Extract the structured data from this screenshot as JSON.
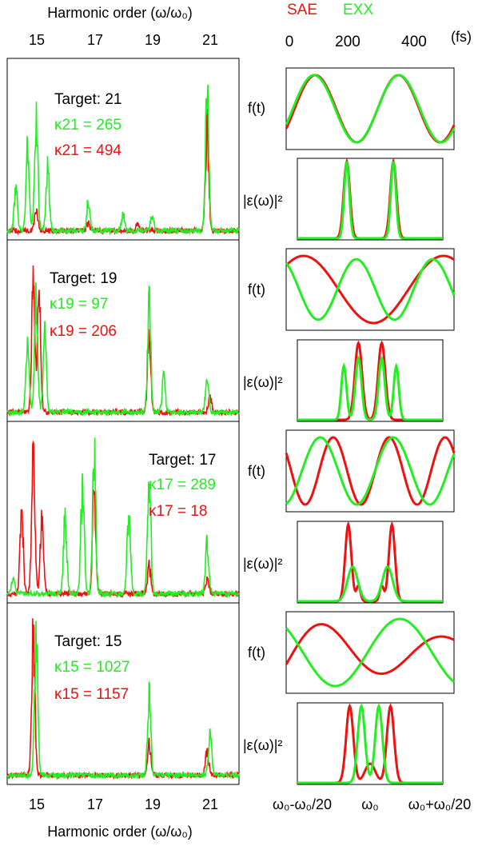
{
  "colors": {
    "sae": "#ee1111",
    "exx": "#22ee22",
    "axis": "#000000"
  },
  "header": {
    "left_title": "Harmonic order (ω/ω₀)",
    "legend_sae": "SAE",
    "legend_exx": "EXX",
    "time_unit": "(fs)",
    "time_ticks": [
      "0",
      "200",
      "400"
    ]
  },
  "footer": {
    "left_title": "Harmonic order (ω/ω₀)",
    "freq_ticks": [
      "ω₀-ω₀/20",
      "ω₀",
      "ω₀+ω₀/20"
    ]
  },
  "harmonic_ticks": [
    "15",
    "17",
    "19",
    "21"
  ],
  "labels": {
    "ft": "f(t)",
    "spectrum": "|ε(ω)|²"
  },
  "chart_data": [
    {
      "type": "line",
      "panel": "spectrum",
      "target_label": "Target: 21",
      "xlabel": "Harmonic order (ω/ω₀)",
      "xlim": [
        14,
        22
      ],
      "x_ticks": [
        15,
        17,
        19,
        21
      ],
      "exx_kappa": "κ21 = 265",
      "sae_kappa": "κ21 = 494",
      "series": [
        {
          "name": "SAE",
          "peaks": [
            [
              15.0,
              0.16
            ],
            [
              16.8,
              0.05
            ],
            [
              18.5,
              0.05
            ],
            [
              20.9,
              0.72
            ]
          ]
        },
        {
          "name": "EXX",
          "peaks": [
            [
              14.3,
              0.3
            ],
            [
              14.7,
              0.55
            ],
            [
              15.0,
              0.86
            ],
            [
              15.4,
              0.45
            ],
            [
              16.8,
              0.2
            ],
            [
              18.0,
              0.12
            ],
            [
              19.0,
              0.1
            ],
            [
              20.9,
              1.0
            ]
          ]
        }
      ]
    },
    {
      "type": "line",
      "panel": "spectrum",
      "target_label": "Target: 19",
      "exx_kappa": "κ19 = 97",
      "sae_kappa": "κ19 = 206",
      "series": [
        {
          "name": "SAE",
          "peaks": [
            [
              14.9,
              0.95
            ],
            [
              15.1,
              0.85
            ],
            [
              18.9,
              0.55
            ],
            [
              21.0,
              0.12
            ]
          ]
        },
        {
          "name": "EXX",
          "peaks": [
            [
              14.7,
              0.45
            ],
            [
              15.0,
              0.8
            ],
            [
              15.3,
              0.55
            ],
            [
              18.9,
              0.75
            ],
            [
              19.4,
              0.25
            ],
            [
              20.9,
              0.28
            ]
          ]
        }
      ]
    },
    {
      "type": "line",
      "panel": "spectrum",
      "target_label": "Target: 17",
      "exx_kappa": "κ17 = 289",
      "sae_kappa": "κ17 = 18",
      "series": [
        {
          "name": "SAE",
          "peaks": [
            [
              14.5,
              0.6
            ],
            [
              14.9,
              1.0
            ],
            [
              15.2,
              0.55
            ],
            [
              17.0,
              0.75
            ],
            [
              18.9,
              0.2
            ],
            [
              20.9,
              0.12
            ]
          ]
        },
        {
          "name": "EXX",
          "peaks": [
            [
              14.2,
              0.12
            ],
            [
              16.0,
              0.55
            ],
            [
              16.6,
              0.8
            ],
            [
              17.0,
              1.0
            ],
            [
              18.2,
              0.6
            ],
            [
              18.9,
              0.85
            ],
            [
              20.9,
              0.35
            ]
          ]
        }
      ]
    },
    {
      "type": "line",
      "panel": "spectrum",
      "target_label": "Target: 15",
      "exx_kappa": "κ15 = 1027",
      "sae_kappa": "κ15 = 1157",
      "series": [
        {
          "name": "SAE",
          "peaks": [
            [
              14.9,
              1.0
            ],
            [
              18.9,
              0.22
            ],
            [
              20.9,
              0.16
            ]
          ]
        },
        {
          "name": "EXX",
          "peaks": [
            [
              15.0,
              1.0
            ],
            [
              18.9,
              0.55
            ],
            [
              21.0,
              0.28
            ]
          ]
        }
      ]
    },
    {
      "type": "line",
      "panel": "pulse-f(t)",
      "xlabel": "(fs)",
      "xlim": [
        0,
        700
      ],
      "x_ticks": [
        0,
        200,
        400
      ],
      "series": [
        {
          "name": "SAE",
          "peaks_t": [
            150,
            350
          ],
          "troughs_t": [
            0,
            250,
            470
          ]
        },
        {
          "name": "EXX",
          "peaks_t": [
            155,
            355
          ],
          "troughs_t": [
            0,
            255,
            480
          ]
        }
      ]
    },
    {
      "type": "line",
      "panel": "spectrum-eps",
      "xticks": [
        "ω₀-ω₀/20",
        "ω₀",
        "ω₀+ω₀/20"
      ],
      "series": [
        {
          "name": "SAE",
          "peaks": [
            [
              -0.011,
              1.0
            ],
            [
              0.011,
              1.0
            ]
          ]
        },
        {
          "name": "EXX",
          "peaks": [
            [
              -0.011,
              1.0
            ],
            [
              0.011,
              1.0
            ]
          ]
        }
      ]
    }
  ]
}
